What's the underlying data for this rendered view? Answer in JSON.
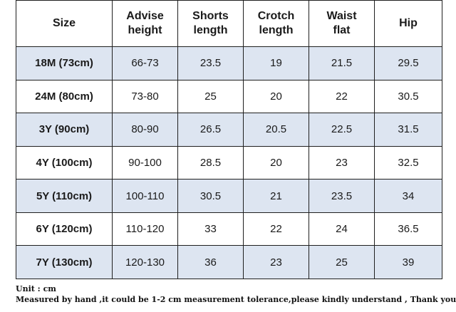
{
  "table": {
    "headers": [
      "Size",
      "Advise\nheight",
      "Shorts\nlength",
      "Crotch\nlength",
      "Waist\nflat",
      "Hip"
    ],
    "rows": [
      [
        "18M (73cm)",
        "66-73",
        "23.5",
        "19",
        "21.5",
        "29.5"
      ],
      [
        "24M (80cm)",
        "73-80",
        "25",
        "20",
        "22",
        "30.5"
      ],
      [
        "3Y (90cm)",
        "80-90",
        "26.5",
        "20.5",
        "22.5",
        "31.5"
      ],
      [
        "4Y (100cm)",
        "90-100",
        "28.5",
        "20",
        "23",
        "32.5"
      ],
      [
        "5Y (110cm)",
        "100-110",
        "30.5",
        "21",
        "23.5",
        "34"
      ],
      [
        "6Y (120cm)",
        "110-120",
        "33",
        "22",
        "24",
        "36.5"
      ],
      [
        "7Y (130cm)",
        "120-130",
        "36",
        "23",
        "25",
        "39"
      ]
    ]
  },
  "notes": {
    "unit": "Unit : cm",
    "tolerance": "Measured by hand ,it could be 1-2 cm measurement tolerance,please kindly understand , Thank you !"
  },
  "colors": {
    "shaded_row": "#dde5f1",
    "plain_row": "#ffffff",
    "border": "#1f1f1f"
  }
}
